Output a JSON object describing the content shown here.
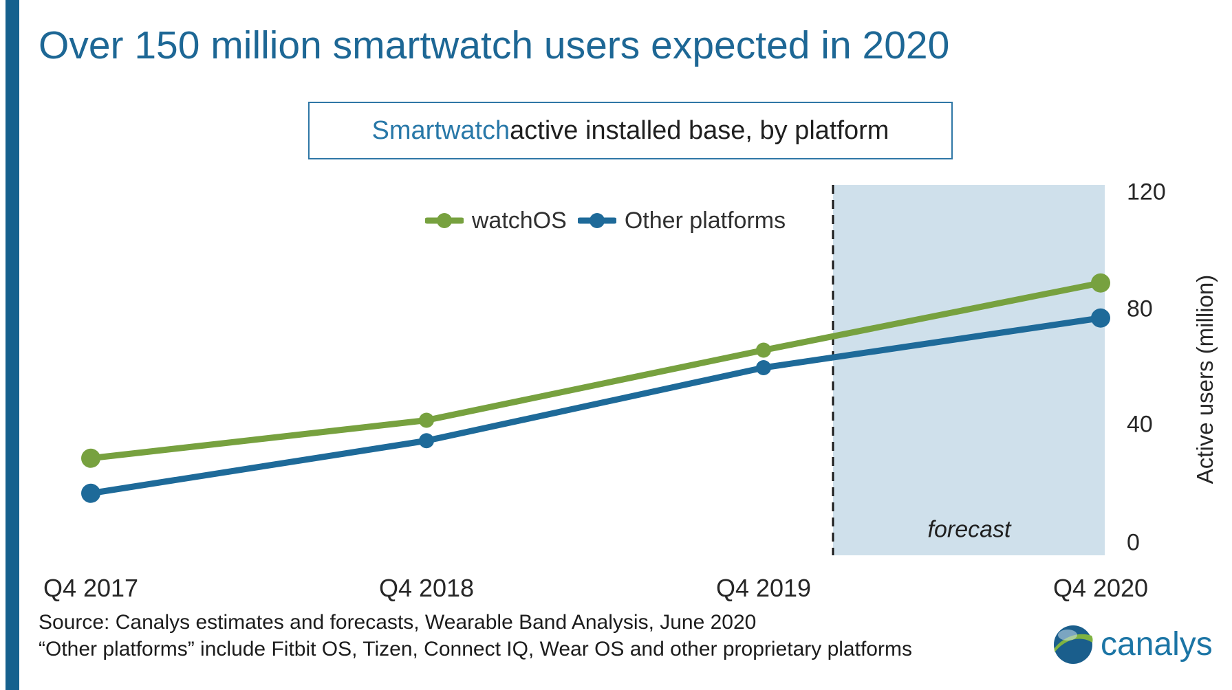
{
  "page": {
    "title": "Over 150 million smartwatch users expected in 2020",
    "subtitle": {
      "highlight": "Smartwatch",
      "rest": " active installed base, by platform"
    },
    "source_line1": "Source: Canalys estimates and forecasts, Wearable Band Analysis, June 2020",
    "source_line2": "“Other platforms” include Fitbit OS, Tizen, Connect IQ, Wear OS and other proprietary platforms",
    "logo_text": "canalys"
  },
  "chart_data": {
    "type": "line",
    "title": "Smartwatch active installed base, by platform",
    "categories": [
      "Q4 2017",
      "Q4 2018",
      "Q4 2019",
      "Q4 2020"
    ],
    "series": [
      {
        "name": "watchOS",
        "color": "#77A13F",
        "values": [
          29,
          42,
          66,
          89
        ]
      },
      {
        "name": "Other platforms",
        "color": "#1E6A99",
        "values": [
          17,
          35,
          60,
          77
        ]
      }
    ],
    "xlabel": "",
    "ylabel": "Active users (million)",
    "yticks": [
      0,
      40,
      80,
      120
    ],
    "ylim": [
      0,
      120
    ],
    "grid": false,
    "legend_position": "top-center",
    "marker": "circle",
    "forecast": {
      "label": "forecast",
      "starts_after": "Q4 2019",
      "region_fill": "#CFE0EB",
      "boundary_style": "dashed",
      "boundary_color": "#1a1a1a"
    }
  },
  "colors": {
    "title_blue": "#1D6795",
    "left_bar": "#15618E",
    "subtitle_border": "#2F77A6",
    "subtitle_highlight": "#2878A8",
    "axis_text": "#262626",
    "logo_blue": "#1C75A5",
    "logo_green": "#7FB341"
  }
}
